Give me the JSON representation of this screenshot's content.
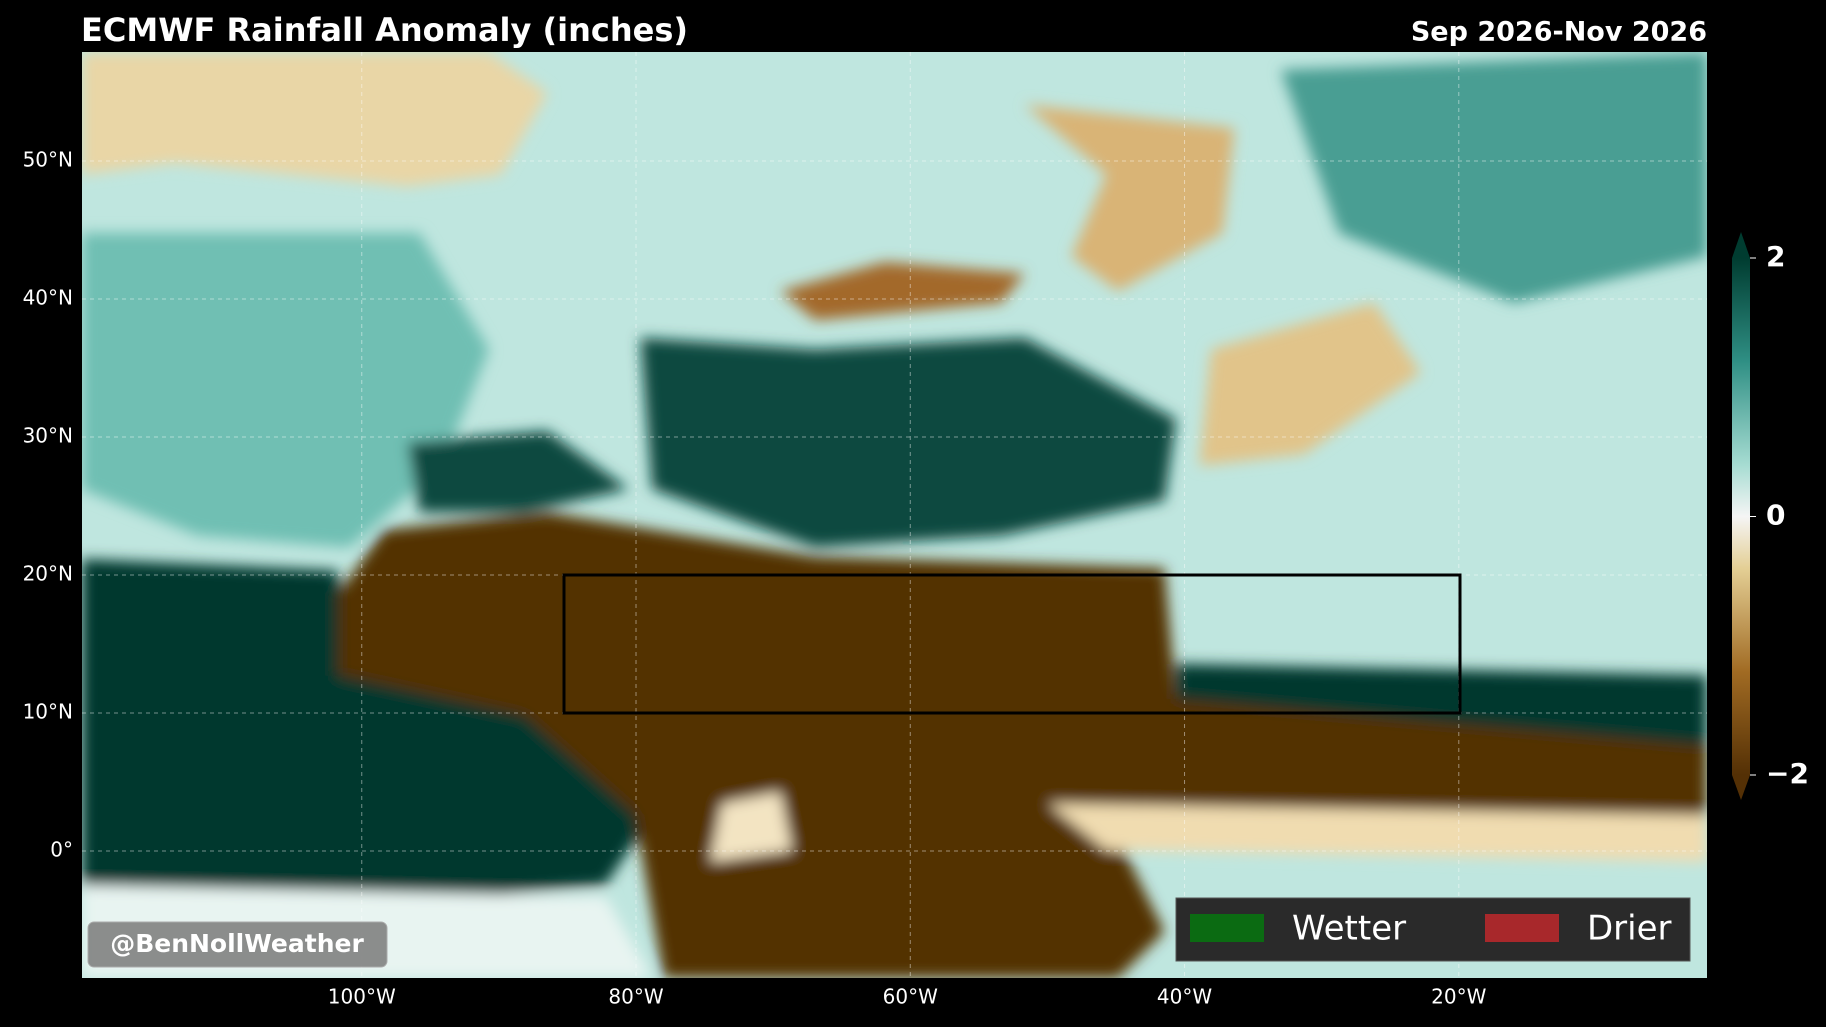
{
  "map": {
    "title": "ECMWF Rainfall Anomaly (inches)",
    "period": "Sep 2026-Nov 2026",
    "xlim": [
      -120.4,
      -1.9
    ],
    "ylim": [
      -9.2,
      57.9
    ],
    "xticks": [
      {
        "value": -100,
        "label": "100°W"
      },
      {
        "value": -80,
        "label": "80°W"
      },
      {
        "value": -60,
        "label": "60°W"
      },
      {
        "value": -40,
        "label": "40°W"
      },
      {
        "value": -20,
        "label": "20°W"
      }
    ],
    "yticks": [
      {
        "value": 0,
        "label": "0°"
      },
      {
        "value": 10,
        "label": "10°N"
      },
      {
        "value": 20,
        "label": "20°N"
      },
      {
        "value": 30,
        "label": "30°N"
      },
      {
        "value": 40,
        "label": "40°N"
      },
      {
        "value": 50,
        "label": "50°N"
      }
    ],
    "grid": true,
    "colorbar": {
      "clim": [
        -2,
        2
      ],
      "ticks": [
        2,
        0,
        {
          "value": -2,
          "label": "−2"
        }
      ]
    },
    "legend": [
      {
        "name": "Wetter",
        "color": "#0b6b12"
      },
      {
        "name": "Drier",
        "color": "#a8282b"
      }
    ],
    "credit": "@BenNollWeather"
  }
}
